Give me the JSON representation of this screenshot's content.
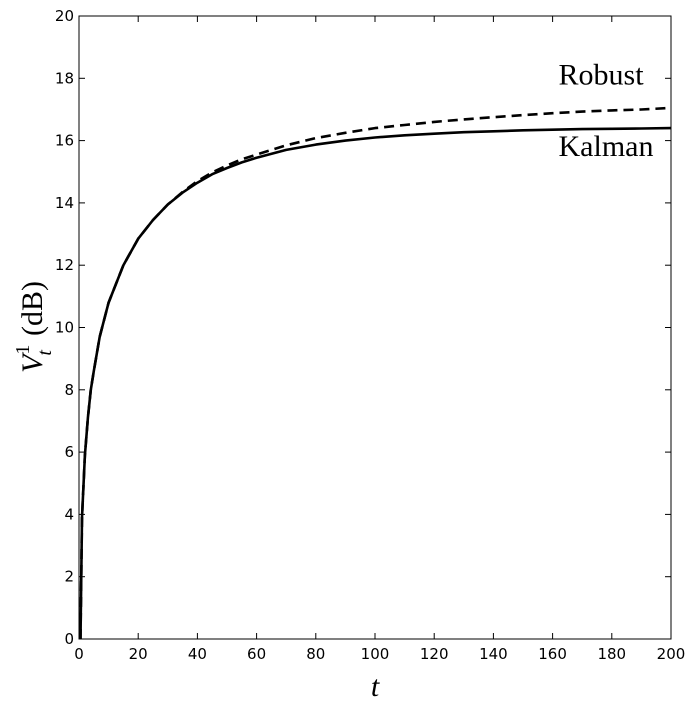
{
  "chart_data": {
    "type": "line",
    "title": "",
    "xlabel": "t",
    "ylabel": {
      "base": "V",
      "subscript": "t",
      "superscript": "1",
      "unit": "(dB)"
    },
    "xlim": [
      0,
      200
    ],
    "ylim": [
      0,
      20
    ],
    "xticks": [
      0,
      20,
      40,
      60,
      80,
      100,
      120,
      140,
      160,
      180,
      200
    ],
    "yticks": [
      0,
      2,
      4,
      6,
      8,
      10,
      12,
      14,
      16,
      18,
      20
    ],
    "grid": false,
    "series": [
      {
        "name": "Robust",
        "style": "dashed",
        "color": "#000000",
        "x": [
          0.5,
          1,
          2,
          3,
          4,
          5,
          7,
          10,
          15,
          20,
          25,
          30,
          35,
          40,
          45,
          50,
          55,
          60,
          70,
          80,
          90,
          100,
          110,
          120,
          130,
          140,
          150,
          160,
          170,
          180,
          190,
          200
        ],
        "y": [
          0.0,
          3.9,
          5.9,
          7.1,
          8.0,
          8.6,
          9.7,
          10.8,
          12.0,
          12.85,
          13.45,
          13.95,
          14.35,
          14.7,
          14.98,
          15.2,
          15.4,
          15.55,
          15.85,
          16.08,
          16.25,
          16.4,
          16.5,
          16.6,
          16.68,
          16.75,
          16.82,
          16.88,
          16.93,
          16.97,
          17.0,
          17.05
        ]
      },
      {
        "name": "Kalman",
        "style": "solid",
        "color": "#000000",
        "x": [
          0.5,
          1,
          2,
          3,
          4,
          5,
          7,
          10,
          15,
          20,
          25,
          30,
          35,
          40,
          45,
          50,
          55,
          60,
          70,
          80,
          90,
          100,
          110,
          120,
          130,
          140,
          150,
          160,
          170,
          180,
          190,
          200
        ],
        "y": [
          0.0,
          3.9,
          5.9,
          7.1,
          8.0,
          8.6,
          9.7,
          10.8,
          12.0,
          12.85,
          13.45,
          13.95,
          14.33,
          14.65,
          14.92,
          15.12,
          15.3,
          15.45,
          15.7,
          15.87,
          16.0,
          16.1,
          16.17,
          16.22,
          16.27,
          16.3,
          16.33,
          16.35,
          16.37,
          16.38,
          16.39,
          16.4
        ]
      }
    ],
    "annotations": [
      {
        "text": "Robust",
        "x": 162,
        "y": 17.8
      },
      {
        "text": "Kalman",
        "x": 162,
        "y": 15.5
      }
    ]
  }
}
